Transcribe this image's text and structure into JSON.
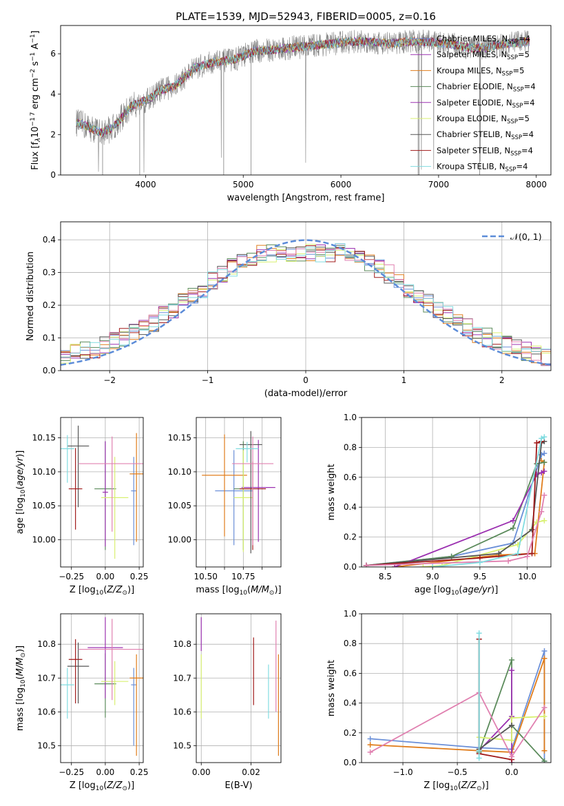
{
  "colors": {
    "c1": "#6a8fd8",
    "c2": "#e07c1a",
    "c3": "#5a8a5a",
    "c4": "#9b30b0",
    "c5": "#d8f070",
    "c6": "#555555",
    "c7": "#a01818",
    "c8": "#e080b0",
    "c9": "#80dce0",
    "spec": "#808080",
    "normal": "#5b8bd8"
  },
  "chart_data": [
    {
      "id": "spectrum",
      "type": "line",
      "title": "PLATE=1539, MJD=52943, FIBERID=0005, z=0.16",
      "xlabel": "wavelength [Angstrom, rest frame]",
      "ylabel": "Flux [fλ10⁻¹⁷ erg cm⁻² s⁻¹ A⁻¹]",
      "xlim": [
        3130,
        8150
      ],
      "ylim": [
        0,
        7.4
      ],
      "xticks": [
        4000,
        5000,
        6000,
        7000,
        8000
      ],
      "yticks": [
        0,
        2,
        4,
        6
      ],
      "grid": false,
      "legend_position": "upper-right",
      "continuum": {
        "x": [
          3290,
          3350,
          3450,
          3550,
          3650,
          3750,
          3850,
          3950,
          4050,
          4150,
          4300,
          4500,
          4700,
          4900,
          5100,
          5300,
          5500,
          5700,
          5900,
          6100,
          6300,
          6500,
          6700,
          6900,
          7100,
          7300,
          7500,
          7700,
          7900
        ],
        "y": [
          2.6,
          2.5,
          2.3,
          2.1,
          2.3,
          2.8,
          3.4,
          3.6,
          3.8,
          4.2,
          4.4,
          5.3,
          5.6,
          5.7,
          6.1,
          6.2,
          6.3,
          6.4,
          6.5,
          6.6,
          6.6,
          6.5,
          6.6,
          6.6,
          6.5,
          6.3,
          6.3,
          6.5,
          6.6
        ]
      },
      "series": [
        {
          "name": "Chabrier MILES, N",
          "sub": "SSP",
          "suffix": "=4",
          "color": "#6a8fd8"
        },
        {
          "name": "Salpeter MILES, N",
          "sub": "SSP",
          "suffix": "=5",
          "color": "#9b30b0"
        },
        {
          "name": "Kroupa MILES, N",
          "sub": "SSP",
          "suffix": "=5",
          "color": "#e07c1a"
        },
        {
          "name": "Chabrier ELODIE, N",
          "sub": "SSP",
          "suffix": "=4",
          "color": "#5a8a5a"
        },
        {
          "name": "Salpeter ELODIE, N",
          "sub": "SSP",
          "suffix": "=4",
          "color": "#9b30b0"
        },
        {
          "name": "Kroupa ELODIE, N",
          "sub": "SSP",
          "suffix": "=5",
          "color": "#d8f070"
        },
        {
          "name": "Chabrier STELIB, N",
          "sub": "SSP",
          "suffix": "=4",
          "color": "#555555"
        },
        {
          "name": "Salpeter STELIB, N",
          "sub": "SSP",
          "suffix": "=4",
          "color": "#a01818"
        },
        {
          "name": "Kroupa STELIB, N",
          "sub": "SSP",
          "suffix": "=4",
          "color": "#80dce0"
        }
      ]
    },
    {
      "id": "residuals",
      "type": "histogram",
      "xlabel": "(data-model)/error",
      "ylabel": "Normed distribution",
      "xlim": [
        -2.5,
        2.5
      ],
      "ylim": [
        0,
        0.455
      ],
      "xticks": [
        -2,
        -1,
        0,
        1,
        2
      ],
      "yticks": [
        0.0,
        0.1,
        0.2,
        0.3,
        0.4
      ],
      "grid": true,
      "legend": [
        {
          "label": "𝒩(0, 1)",
          "style": "dashed"
        }
      ],
      "legend_position": "upper-right",
      "bin_width": 0.1
    },
    {
      "id": "age_vs_Z",
      "type": "errorbar",
      "xlabel": "Z [log₁₀(Z/Z⊙)]",
      "ylabel": "age  [log₁₀(age/yr)]",
      "xlim": [
        -0.33,
        0.28
      ],
      "ylim": [
        9.96,
        10.18
      ],
      "xticks": [
        -0.25,
        0.0,
        0.25
      ],
      "yticks": [
        10.0,
        10.05,
        10.1,
        10.15
      ],
      "grid": true,
      "points": [
        {
          "x": 0.21,
          "xerr": 0.02,
          "y": 10.072,
          "yerr": [
            0.08,
            0.05
          ],
          "c": "#6a8fd8"
        },
        {
          "x": 0.23,
          "xerr": 0.05,
          "y": 10.097,
          "yerr": [
            0.1,
            0.06
          ],
          "c": "#e07c1a"
        },
        {
          "x": 0.0,
          "xerr": 0.08,
          "y": 10.075,
          "yerr": [
            0.09,
            0.07
          ],
          "c": "#5a8a5a"
        },
        {
          "x": 0.0,
          "xerr": 0.02,
          "y": 10.07,
          "yerr": [
            0.08,
            0.075
          ],
          "c": "#9b30b0"
        },
        {
          "x": 0.07,
          "xerr": 0.1,
          "y": 10.062,
          "yerr": [
            0.09,
            0.06
          ],
          "c": "#d8f070"
        },
        {
          "x": -0.2,
          "xerr": 0.08,
          "y": 10.138,
          "yerr": [
            0.09,
            0.03
          ],
          "c": "#555555"
        },
        {
          "x": -0.22,
          "xerr": 0.05,
          "y": 10.075,
          "yerr": [
            0.06,
            0.06
          ],
          "c": "#a01818"
        },
        {
          "x": 0.05,
          "xerr": 0.25,
          "y": 10.112,
          "yerr": [
            0.1,
            0.04
          ],
          "c": "#e080b0"
        },
        {
          "x": -0.28,
          "xerr": 0.05,
          "y": 10.134,
          "yerr": [
            0.05,
            0.02
          ],
          "c": "#80dce0"
        }
      ]
    },
    {
      "id": "age_vs_mass",
      "type": "errorbar",
      "xlabel": "mass [log₁₀(M/M⊙)]",
      "ylabel": "",
      "xlim": [
        10.45,
        10.9
      ],
      "ylim": [
        9.96,
        10.18
      ],
      "xticks": [
        10.5,
        10.6,
        10.7,
        10.8
      ],
      "yticks": [
        10.0,
        10.05,
        10.1,
        10.15
      ],
      "xticklabels": [
        "10.50",
        "",
        "10.75",
        ""
      ],
      "grid": true,
      "points": [
        {
          "x": 10.65,
          "xerr": 0.1,
          "y": 10.072,
          "yerr": [
            0.08,
            0.06
          ],
          "c": "#6a8fd8"
        },
        {
          "x": 10.6,
          "xerr": 0.12,
          "y": 10.095,
          "yerr": [
            0.09,
            0.06
          ],
          "c": "#e07c1a"
        },
        {
          "x": 10.7,
          "xerr": 0.05,
          "y": 10.075,
          "yerr": [
            0.09,
            0.07
          ],
          "c": "#5a8a5a"
        },
        {
          "x": 10.78,
          "xerr": 0.09,
          "y": 10.077,
          "yerr": [
            0.08,
            0.07
          ],
          "c": "#9b30b0"
        },
        {
          "x": 10.7,
          "xerr": 0.05,
          "y": 10.062,
          "yerr": [
            0.08,
            0.07
          ],
          "c": "#d8f070"
        },
        {
          "x": 10.74,
          "xerr": 0.06,
          "y": 10.14,
          "yerr": [
            0.16,
            0.02
          ],
          "c": "#555555"
        },
        {
          "x": 10.75,
          "xerr": 0.07,
          "y": 10.075,
          "yerr": [
            0.09,
            0.04
          ],
          "c": "#a01818"
        },
        {
          "x": 10.75,
          "xerr": 0.11,
          "y": 10.112,
          "yerr": [
            0.12,
            0.04
          ],
          "c": "#e080b0"
        },
        {
          "x": 10.72,
          "xerr": 0.06,
          "y": 10.134,
          "yerr": [
            0.02,
            0.01
          ],
          "c": "#80dce0"
        }
      ]
    },
    {
      "id": "weight_vs_age",
      "type": "line",
      "xlabel": "age  [log₁₀(age/yr)]",
      "ylabel": "mass weight",
      "xlim": [
        8.25,
        10.25
      ],
      "ylim": [
        0,
        1.0
      ],
      "xticks": [
        8.5,
        9.0,
        9.5,
        10.0
      ],
      "yticks": [
        0.0,
        0.2,
        0.4,
        0.6,
        0.8,
        1.0
      ],
      "grid": true,
      "series": [
        {
          "c": "#6a8fd8",
          "x": [
            8.3,
            9.2,
            9.85,
            10.15,
            10.18
          ],
          "y": [
            0.01,
            0.07,
            0.16,
            0.75,
            0.76
          ]
        },
        {
          "c": "#e07c1a",
          "x": [
            8.6,
            9.7,
            10.08,
            10.18,
            10.15
          ],
          "y": [
            0.0,
            0.08,
            0.09,
            0.7,
            0.71
          ]
        },
        {
          "c": "#5a8a5a",
          "x": [
            8.3,
            9.2,
            9.85,
            10.1,
            10.18
          ],
          "y": [
            0.01,
            0.07,
            0.26,
            0.69,
            0.7
          ]
        },
        {
          "c": "#9b30b0",
          "x": [
            8.6,
            9.85,
            10.1,
            10.15,
            10.18
          ],
          "y": [
            0.0,
            0.31,
            0.62,
            0.63,
            0.64
          ]
        },
        {
          "c": "#d8f070",
          "x": [
            8.9,
            9.1,
            9.9,
            10.1,
            10.18
          ],
          "y": [
            0.0,
            0.01,
            0.15,
            0.3,
            0.31
          ]
        },
        {
          "c": "#555555",
          "x": [
            8.3,
            9.7,
            10.05,
            10.15,
            10.18
          ],
          "y": [
            0.01,
            0.09,
            0.25,
            0.83,
            0.84
          ]
        },
        {
          "c": "#a01818",
          "x": [
            8.3,
            9.5,
            10.05,
            10.1,
            10.15
          ],
          "y": [
            0.01,
            0.06,
            0.09,
            0.83,
            0.84
          ]
        },
        {
          "c": "#e080b0",
          "x": [
            8.3,
            9.8,
            10.0,
            10.15,
            10.18
          ],
          "y": [
            0.01,
            0.04,
            0.07,
            0.37,
            0.48
          ]
        },
        {
          "c": "#80dce0",
          "x": [
            9.0,
            9.5,
            9.9,
            10.15,
            10.18
          ],
          "y": [
            0.0,
            0.03,
            0.09,
            0.86,
            0.87
          ]
        }
      ]
    },
    {
      "id": "mass_vs_Z",
      "type": "errorbar",
      "xlabel": "Z [log₁₀(Z/Z⊙)]",
      "ylabel": "mass [log₁₀(M/M⊙)]",
      "xlim": [
        -0.33,
        0.28
      ],
      "ylim": [
        10.45,
        10.89
      ],
      "xticks": [
        -0.25,
        0.0,
        0.25
      ],
      "yticks": [
        10.5,
        10.6,
        10.7,
        10.8
      ],
      "grid": true,
      "points": [
        {
          "x": 0.21,
          "xerr": 0.02,
          "y": 10.68,
          "yerr": [
            0.18,
            0.05
          ],
          "c": "#6a8fd8"
        },
        {
          "x": 0.23,
          "xerr": 0.05,
          "y": 10.7,
          "yerr": [
            0.23,
            0.07
          ],
          "c": "#e07c1a"
        },
        {
          "x": 0.0,
          "xerr": 0.08,
          "y": 10.683,
          "yerr": [
            0.1,
            0.09
          ],
          "c": "#5a8a5a"
        },
        {
          "x": 0.0,
          "xerr": 0.13,
          "y": 10.79,
          "yerr": [
            0.15,
            0.09
          ],
          "c": "#9b30b0"
        },
        {
          "x": 0.07,
          "xerr": 0.1,
          "y": 10.69,
          "yerr": [
            0.07,
            0.06
          ],
          "c": "#d8f070"
        },
        {
          "x": -0.2,
          "xerr": 0.08,
          "y": 10.735,
          "yerr": [
            0.11,
            0.07
          ],
          "c": "#555555"
        },
        {
          "x": -0.22,
          "xerr": 0.05,
          "y": 10.755,
          "yerr": [
            0.13,
            0.06
          ],
          "c": "#a01818"
        },
        {
          "x": 0.05,
          "xerr": 0.25,
          "y": 10.785,
          "yerr": [
            0.15,
            0.09
          ],
          "c": "#e080b0"
        },
        {
          "x": -0.28,
          "xerr": 0.05,
          "y": 10.68,
          "yerr": [
            0.1,
            0.05
          ],
          "c": "#80dce0"
        }
      ]
    },
    {
      "id": "mass_vs_ebv",
      "type": "errorbar",
      "xlabel": "E(B-V)",
      "ylabel": "",
      "xlim": [
        -0.002,
        0.032
      ],
      "ylim": [
        10.45,
        10.89
      ],
      "xticks": [
        0.0,
        0.02
      ],
      "yticks": [
        10.5,
        10.6,
        10.7,
        10.8
      ],
      "grid": true,
      "points": [
        {
          "x": 0.0,
          "xerr": 0,
          "y": 10.83,
          "yerr": [
            0.05,
            0.05
          ],
          "c": "#9b30b0"
        },
        {
          "x": 0.0,
          "xerr": 0,
          "y": 10.68,
          "yerr": [
            0.1,
            0.09
          ],
          "c": "#d8f070"
        },
        {
          "x": 0.021,
          "xerr": 0,
          "y": 10.72,
          "yerr": [
            0.1,
            0.1
          ],
          "c": "#a01818"
        },
        {
          "x": 0.027,
          "xerr": 0,
          "y": 10.66,
          "yerr": [
            0.08,
            0.08
          ],
          "c": "#80dce0"
        },
        {
          "x": 0.03,
          "xerr": 0,
          "y": 10.75,
          "yerr": [
            0.15,
            0.12
          ],
          "c": "#e080b0"
        },
        {
          "x": 0.031,
          "xerr": 0,
          "y": 10.62,
          "yerr": [
            0.15,
            0.15
          ],
          "c": "#e07c1a"
        }
      ]
    },
    {
      "id": "weight_vs_Z",
      "type": "line",
      "xlabel": "Z [log₁₀(Z/Z⊙)]",
      "ylabel": "mass weight",
      "xlim": [
        -1.38,
        0.36
      ],
      "ylim": [
        0,
        1.0
      ],
      "xticks": [
        -1.0,
        -0.5,
        0.0
      ],
      "yticks": [
        0.0,
        0.2,
        0.4,
        0.6,
        0.8,
        1.0
      ],
      "grid": true,
      "series": [
        {
          "c": "#6a8fd8",
          "x": [
            -1.3,
            -0.3,
            0.0,
            0.3,
            0.3
          ],
          "y": [
            0.16,
            0.1,
            0.09,
            0.75,
            0.01
          ]
        },
        {
          "c": "#e07c1a",
          "x": [
            -1.3,
            -0.3,
            0.0,
            0.3,
            0.3
          ],
          "y": [
            0.12,
            0.08,
            0.07,
            0.7,
            0.08
          ]
        },
        {
          "c": "#5a8a5a",
          "x": [
            -0.3,
            0.0,
            0.0,
            0.3
          ],
          "y": [
            0.07,
            0.69,
            0.25,
            0.01
          ]
        },
        {
          "c": "#9b30b0",
          "x": [
            -0.3,
            0.0,
            0.0,
            0.0
          ],
          "y": [
            0.08,
            0.31,
            0.62,
            0.0
          ]
        },
        {
          "c": "#d8f070",
          "x": [
            -0.3,
            0.0,
            0.0,
            0.3
          ],
          "y": [
            0.17,
            0.15,
            0.3,
            0.31
          ]
        },
        {
          "c": "#555555",
          "x": [
            -0.3,
            -0.3,
            0.0
          ],
          "y": [
            0.83,
            0.09,
            0.25
          ]
        },
        {
          "c": "#a01818",
          "x": [
            -0.3,
            -0.3,
            0.0
          ],
          "y": [
            0.83,
            0.06,
            0.02
          ]
        },
        {
          "c": "#e080b0",
          "x": [
            -1.3,
            -0.3,
            0.0,
            0.3
          ],
          "y": [
            0.07,
            0.47,
            0.04,
            0.37
          ]
        },
        {
          "c": "#80dce0",
          "x": [
            -0.3,
            -0.3,
            -0.3
          ],
          "y": [
            0.87,
            0.03,
            0.08
          ]
        }
      ]
    }
  ]
}
